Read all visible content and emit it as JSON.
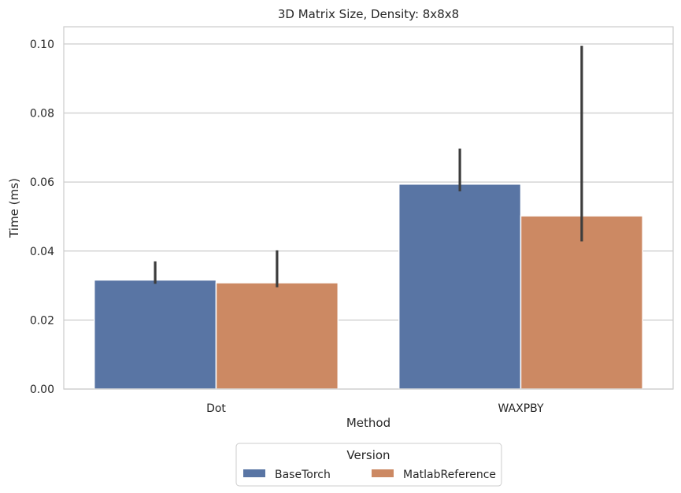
{
  "chart_data": {
    "type": "bar",
    "title": "3D Matrix Size, Density: 8x8x8",
    "xlabel": "Method",
    "ylabel": "Time (ms)",
    "categories": [
      "Dot",
      "WAXPBY"
    ],
    "ylim": [
      0,
      0.105
    ],
    "yticks": [
      "0.00",
      "0.02",
      "0.04",
      "0.06",
      "0.08",
      "0.10"
    ],
    "grid": "horizontal",
    "legend": {
      "title": "Version",
      "placement": "bottom-center"
    },
    "series": [
      {
        "name": "BaseTorch",
        "color": "#5975a4",
        "values": [
          0.0316,
          0.0594
        ],
        "error_low": [
          0.0305,
          0.0573
        ],
        "error_high": [
          0.037,
          0.0697
        ]
      },
      {
        "name": "MatlabReference",
        "color": "#cc8963",
        "values": [
          0.0308,
          0.0502
        ],
        "error_low": [
          0.0295,
          0.0428
        ],
        "error_high": [
          0.0402,
          0.0995
        ]
      }
    ]
  }
}
